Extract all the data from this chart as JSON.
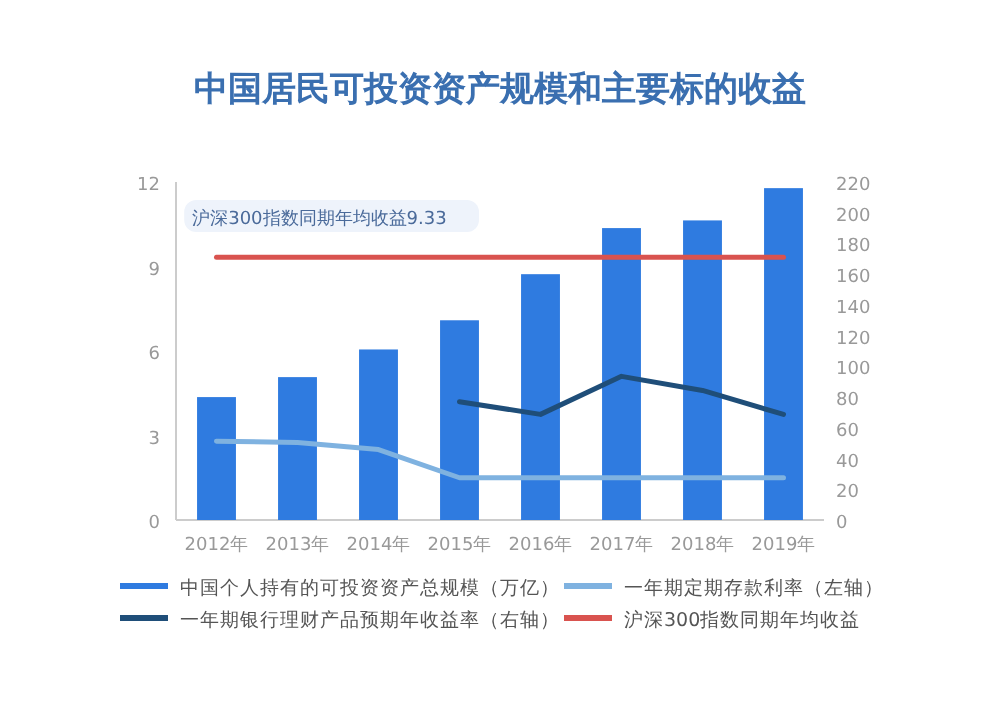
{
  "chart_data": {
    "type": "bar",
    "title": "中国居民可投资资产规模和主要标的收益",
    "categories": [
      "2012年",
      "2013年",
      "2014年",
      "2015年",
      "2016年",
      "2017年",
      "2018年",
      "2019年"
    ],
    "series": [
      {
        "name": "中国个人持有的可投资资产总规模（万亿）",
        "axis": "y2",
        "color": "#2f7be0",
        "values": [
          80,
          93,
          111,
          130,
          160,
          190,
          195,
          216
        ]
      },
      {
        "name": "一年期定期存款利率（左轴）",
        "type": "line",
        "color": "#7fb2e0",
        "values": [
          2.8,
          2.75,
          2.5,
          1.5,
          1.5,
          1.5,
          1.5,
          1.5
        ]
      },
      {
        "name": "一年期银行理财产品预期年收益率（右轴）",
        "type": "line",
        "color": "#1f4e79",
        "values": [
          null,
          null,
          null,
          4.2,
          3.75,
          5.1,
          4.6,
          3.75
        ]
      },
      {
        "name": "沪深300指数同期年均收益",
        "type": "line",
        "color": "#d9534f",
        "values": [
          9.33,
          9.33,
          9.33,
          9.33,
          9.33,
          9.33,
          9.33,
          9.33
        ]
      }
    ],
    "ylim": [
      0,
      12
    ],
    "yticks": [
      0,
      3,
      6,
      9,
      12
    ],
    "y2lim": [
      0,
      220
    ],
    "y2ticks": [
      0,
      20,
      40,
      60,
      80,
      100,
      120,
      140,
      160,
      180,
      200,
      220
    ],
    "annotations": [
      "沪深300指数同期年均收益9.33"
    ],
    "legend": "bottom",
    "grid": false
  }
}
